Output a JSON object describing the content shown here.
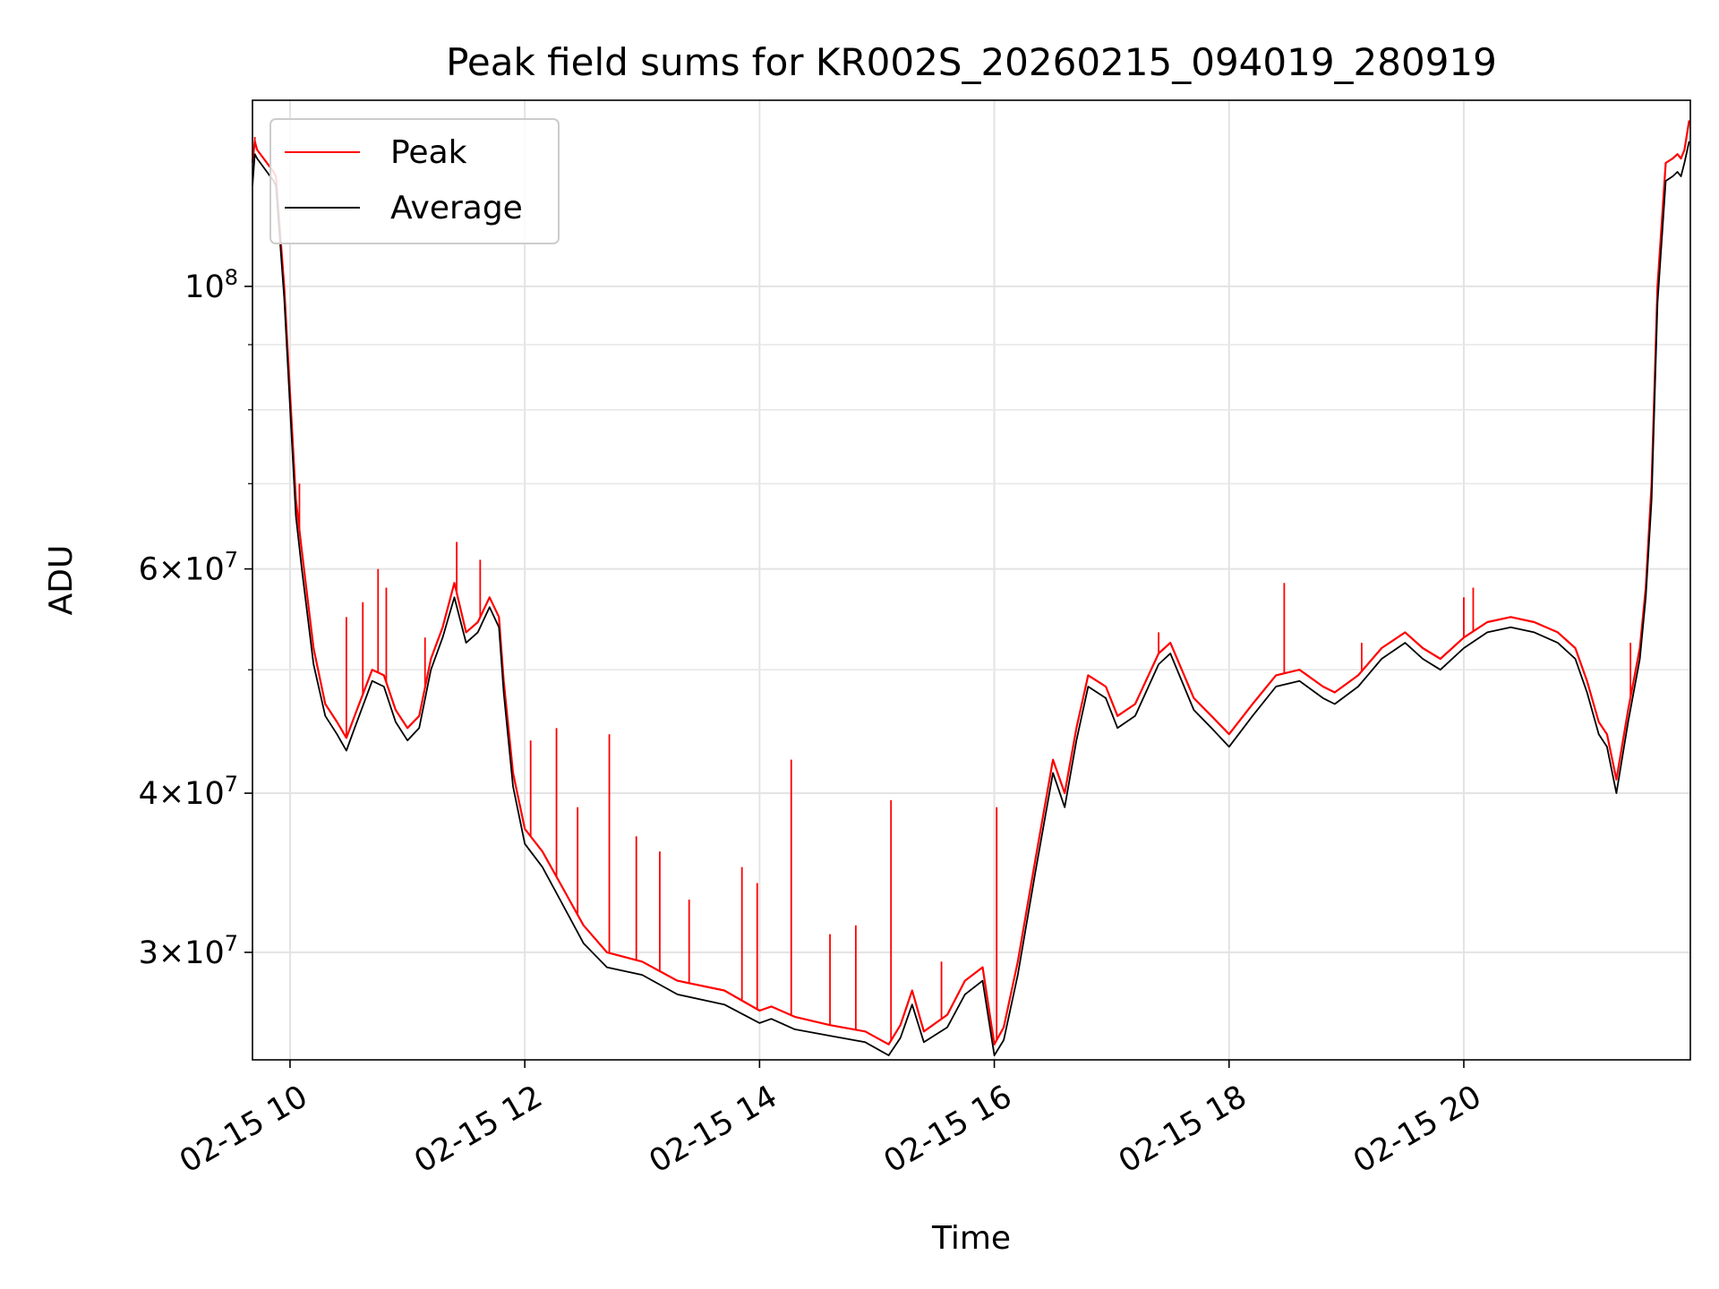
{
  "chart_data": {
    "type": "line",
    "title": "Peak field sums for KR002S_20260215_094019_280919",
    "xlabel": "Time",
    "ylabel": "ADU",
    "yscale": "log",
    "grid": true,
    "legend_position": "upper-left",
    "x_unit": "hours on 2026-02-15",
    "xlim": [
      9.68,
      21.93
    ],
    "ylim": [
      24700000,
      140000000
    ],
    "x_ticks": [
      {
        "value": 10,
        "label": "02-15 10"
      },
      {
        "value": 12,
        "label": "02-15 12"
      },
      {
        "value": 14,
        "label": "02-15 14"
      },
      {
        "value": 16,
        "label": "02-15 16"
      },
      {
        "value": 18,
        "label": "02-15 18"
      },
      {
        "value": 20,
        "label": "02-15 20"
      }
    ],
    "y_major_ticks": [
      {
        "value": 30000000,
        "base": "3×10",
        "exp": "7"
      },
      {
        "value": 40000000,
        "base": "4×10",
        "exp": "7"
      },
      {
        "value": 60000000,
        "base": "6×10",
        "exp": "7"
      },
      {
        "value": 100000000,
        "base": "10",
        "exp": "8"
      }
    ],
    "y_minor_ticks": [
      50000000,
      70000000,
      80000000,
      90000000
    ],
    "series": [
      {
        "name": "Peak",
        "color": "#ff0000",
        "x": [
          9.68,
          9.7,
          9.72,
          9.86,
          9.88,
          9.95,
          10.05,
          10.1,
          10.2,
          10.3,
          10.4,
          10.48,
          10.55,
          10.7,
          10.8,
          10.9,
          11.0,
          11.1,
          11.2,
          11.3,
          11.4,
          11.5,
          11.6,
          11.7,
          11.78,
          11.82,
          11.9,
          12.0,
          12.15,
          12.3,
          12.5,
          12.7,
          13.0,
          13.3,
          13.7,
          14.0,
          14.1,
          14.3,
          14.6,
          14.9,
          15.1,
          15.2,
          15.3,
          15.4,
          15.6,
          15.75,
          15.9,
          16.0,
          16.08,
          16.2,
          16.35,
          16.5,
          16.6,
          16.7,
          16.8,
          16.95,
          17.05,
          17.2,
          17.4,
          17.5,
          17.7,
          17.85,
          18.0,
          18.2,
          18.4,
          18.6,
          18.8,
          18.9,
          19.1,
          19.3,
          19.5,
          19.65,
          19.8,
          20.0,
          20.2,
          20.4,
          20.6,
          20.8,
          20.95,
          21.05,
          21.15,
          21.22,
          21.3,
          21.4,
          21.5,
          21.55,
          21.6,
          21.65,
          21.72,
          21.78,
          21.82,
          21.85,
          21.88,
          21.92
        ],
        "y": [
          125000000,
          130000000,
          128000000,
          123000000,
          122000000,
          100000000,
          68000000,
          62000000,
          52000000,
          47000000,
          45500000,
          44200000,
          46000000,
          50000000,
          49500000,
          46500000,
          45000000,
          46000000,
          51000000,
          54000000,
          58500000,
          53500000,
          54500000,
          57000000,
          55000000,
          49000000,
          41500000,
          37500000,
          36000000,
          34000000,
          31500000,
          30000000,
          29500000,
          28500000,
          28000000,
          27000000,
          27200000,
          26700000,
          26300000,
          26000000,
          25400000,
          26300000,
          28000000,
          26000000,
          26800000,
          28500000,
          29200000,
          25400000,
          26200000,
          29500000,
          35500000,
          42500000,
          40000000,
          45000000,
          49500000,
          48500000,
          46000000,
          47000000,
          51500000,
          52500000,
          47500000,
          46000000,
          44500000,
          47000000,
          49500000,
          50000000,
          48500000,
          48000000,
          49500000,
          52000000,
          53500000,
          52000000,
          51000000,
          53000000,
          54500000,
          55000000,
          54500000,
          53500000,
          52000000,
          49000000,
          45500000,
          44500000,
          41000000,
          46500000,
          52000000,
          58000000,
          70000000,
          100000000,
          125000000,
          126000000,
          127000000,
          126000000,
          128000000,
          135000000
        ]
      },
      {
        "name": "Average",
        "color": "#000000",
        "x": [
          9.68,
          9.7,
          9.72,
          9.86,
          9.88,
          9.95,
          10.05,
          10.1,
          10.2,
          10.3,
          10.4,
          10.48,
          10.55,
          10.7,
          10.8,
          10.9,
          11.0,
          11.1,
          11.2,
          11.3,
          11.4,
          11.5,
          11.6,
          11.7,
          11.78,
          11.82,
          11.9,
          12.0,
          12.15,
          12.3,
          12.5,
          12.7,
          13.0,
          13.3,
          13.7,
          14.0,
          14.1,
          14.3,
          14.6,
          14.9,
          15.1,
          15.2,
          15.3,
          15.4,
          15.6,
          15.75,
          15.9,
          16.0,
          16.08,
          16.2,
          16.35,
          16.5,
          16.6,
          16.7,
          16.8,
          16.95,
          17.05,
          17.2,
          17.4,
          17.5,
          17.7,
          17.85,
          18.0,
          18.2,
          18.4,
          18.6,
          18.8,
          18.9,
          19.1,
          19.3,
          19.5,
          19.65,
          19.8,
          20.0,
          20.2,
          20.4,
          20.6,
          20.8,
          20.95,
          21.05,
          21.15,
          21.22,
          21.3,
          21.4,
          21.5,
          21.55,
          21.6,
          21.65,
          21.72,
          21.78,
          21.82,
          21.85,
          21.88,
          21.92
        ],
        "y": [
          120000000,
          127000000,
          126000000,
          121000000,
          120000000,
          98000000,
          66000000,
          60000000,
          50500000,
          46000000,
          44500000,
          43200000,
          45000000,
          49000000,
          48500000,
          45500000,
          44000000,
          45000000,
          50000000,
          53000000,
          57000000,
          52500000,
          53500000,
          56000000,
          54000000,
          48000000,
          40500000,
          36500000,
          35000000,
          33000000,
          30500000,
          29200000,
          28800000,
          27800000,
          27300000,
          26400000,
          26600000,
          26100000,
          25800000,
          25500000,
          24900000,
          25700000,
          27300000,
          25500000,
          26200000,
          27800000,
          28500000,
          24900000,
          25600000,
          28800000,
          34700000,
          41500000,
          39000000,
          44000000,
          48500000,
          47500000,
          45000000,
          46000000,
          50500000,
          51500000,
          46500000,
          45000000,
          43500000,
          46000000,
          48500000,
          49000000,
          47500000,
          47000000,
          48500000,
          51000000,
          52500000,
          51000000,
          50000000,
          52000000,
          53500000,
          54000000,
          53500000,
          52500000,
          51000000,
          48000000,
          44500000,
          43500000,
          40000000,
          45500000,
          51000000,
          57000000,
          68000000,
          97000000,
          121000000,
          122000000,
          123000000,
          122000000,
          125000000,
          130000000
        ]
      }
    ],
    "peak_spikes": [
      {
        "x": 9.7,
        "y": 131000000
      },
      {
        "x": 10.08,
        "y": 70000000
      },
      {
        "x": 10.48,
        "y": 55000000
      },
      {
        "x": 10.62,
        "y": 56500000
      },
      {
        "x": 10.75,
        "y": 60000000
      },
      {
        "x": 10.82,
        "y": 58000000
      },
      {
        "x": 11.15,
        "y": 53000000
      },
      {
        "x": 11.42,
        "y": 63000000
      },
      {
        "x": 11.62,
        "y": 61000000
      },
      {
        "x": 12.05,
        "y": 44000000
      },
      {
        "x": 12.27,
        "y": 45000000
      },
      {
        "x": 12.45,
        "y": 39000000
      },
      {
        "x": 12.72,
        "y": 44500000
      },
      {
        "x": 12.95,
        "y": 37000000
      },
      {
        "x": 13.15,
        "y": 36000000
      },
      {
        "x": 13.4,
        "y": 33000000
      },
      {
        "x": 13.85,
        "y": 35000000
      },
      {
        "x": 13.98,
        "y": 34000000
      },
      {
        "x": 14.27,
        "y": 42500000
      },
      {
        "x": 14.6,
        "y": 31000000
      },
      {
        "x": 14.82,
        "y": 31500000
      },
      {
        "x": 15.12,
        "y": 39500000
      },
      {
        "x": 15.55,
        "y": 29500000
      },
      {
        "x": 16.02,
        "y": 39000000
      },
      {
        "x": 17.4,
        "y": 53500000
      },
      {
        "x": 18.47,
        "y": 58500000
      },
      {
        "x": 19.13,
        "y": 52500000
      },
      {
        "x": 20.0,
        "y": 57000000
      },
      {
        "x": 20.08,
        "y": 58000000
      },
      {
        "x": 21.42,
        "y": 52500000
      }
    ]
  }
}
